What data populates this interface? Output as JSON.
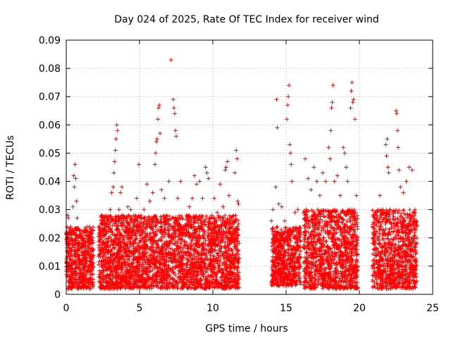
{
  "chart_data": {
    "type": "scatter",
    "title": "Day 024 of 2025, Rate Of TEC Index for receiver wind",
    "xlabel": "GPS time / hours",
    "ylabel": "ROTI / TECUs",
    "xlim": [
      0,
      25
    ],
    "ylim": [
      0,
      0.09
    ],
    "xticks": [
      0,
      5,
      10,
      15,
      20,
      25
    ],
    "yticks": [
      0,
      0.01,
      0.02,
      0.03,
      0.04,
      0.05,
      0.06,
      0.07,
      0.08,
      0.09
    ],
    "xtick_labels": [
      "0",
      "5",
      "10",
      "15",
      "20",
      "25"
    ],
    "ytick_labels": [
      "0",
      "0.01",
      "0.02",
      "0.03",
      "0.04",
      "0.05",
      "0.06",
      "0.07",
      "0.08",
      "0.09"
    ],
    "grid": true,
    "marker": "+",
    "color": "#ff0000",
    "series": [
      {
        "points": [
          [
            0.1,
            0.028
          ],
          [
            0.15,
            0.027
          ],
          [
            0.2,
            0.022
          ],
          [
            0.3,
            0.018
          ],
          [
            0.35,
            0.012
          ],
          [
            0.4,
            0.009
          ],
          [
            0.45,
            0.031
          ],
          [
            0.5,
            0.042
          ],
          [
            0.55,
            0.038
          ],
          [
            0.6,
            0.046
          ],
          [
            0.65,
            0.041
          ],
          [
            0.7,
            0.033
          ],
          [
            0.75,
            0.027
          ],
          [
            0.85,
            0.017
          ],
          [
            0.95,
            0.012
          ],
          [
            1.05,
            0.02
          ],
          [
            1.15,
            0.009
          ],
          [
            1.3,
            0.015
          ],
          [
            1.45,
            0.022
          ],
          [
            1.6,
            0.013
          ],
          [
            1.75,
            0.018
          ],
          [
            1.85,
            0.011
          ],
          [
            2.3,
            0.014
          ],
          [
            2.45,
            0.02
          ],
          [
            2.6,
            0.027
          ],
          [
            2.75,
            0.018
          ],
          [
            2.9,
            0.024
          ],
          [
            3.0,
            0.03
          ],
          [
            3.1,
            0.036
          ],
          [
            3.2,
            0.038
          ],
          [
            3.25,
            0.043
          ],
          [
            3.3,
            0.047
          ],
          [
            3.35,
            0.051
          ],
          [
            3.4,
            0.055
          ],
          [
            3.45,
            0.06
          ],
          [
            3.5,
            0.058
          ],
          [
            3.6,
            0.03
          ],
          [
            3.7,
            0.036
          ],
          [
            3.8,
            0.038
          ],
          [
            3.9,
            0.028
          ],
          [
            4.0,
            0.022
          ],
          [
            4.2,
            0.031
          ],
          [
            4.4,
            0.03
          ],
          [
            4.6,
            0.024
          ],
          [
            4.8,
            0.034
          ],
          [
            4.95,
            0.046
          ],
          [
            5.1,
            0.028
          ],
          [
            5.3,
            0.03
          ],
          [
            5.5,
            0.039
          ],
          [
            5.7,
            0.033
          ],
          [
            5.9,
            0.036
          ],
          [
            6.05,
            0.046
          ],
          [
            6.1,
            0.05
          ],
          [
            6.15,
            0.054
          ],
          [
            6.2,
            0.055
          ],
          [
            6.25,
            0.062
          ],
          [
            6.3,
            0.066
          ],
          [
            6.35,
            0.067
          ],
          [
            6.4,
            0.057
          ],
          [
            6.5,
            0.037
          ],
          [
            6.7,
            0.034
          ],
          [
            6.9,
            0.026
          ],
          [
            7.0,
            0.04
          ],
          [
            7.15,
            0.083
          ],
          [
            7.3,
            0.069
          ],
          [
            7.35,
            0.066
          ],
          [
            7.4,
            0.064
          ],
          [
            7.45,
            0.058
          ],
          [
            7.5,
            0.056
          ],
          [
            7.6,
            0.034
          ],
          [
            7.8,
            0.04
          ],
          [
            8.0,
            0.024
          ],
          [
            8.2,
            0.028
          ],
          [
            8.4,
            0.031
          ],
          [
            8.6,
            0.034
          ],
          [
            8.75,
            0.042
          ],
          [
            8.9,
            0.039
          ],
          [
            9.1,
            0.04
          ],
          [
            9.3,
            0.034
          ],
          [
            9.5,
            0.045
          ],
          [
            9.6,
            0.043
          ],
          [
            9.7,
            0.041
          ],
          [
            9.9,
            0.025
          ],
          [
            10.1,
            0.034
          ],
          [
            10.3,
            0.029
          ],
          [
            10.5,
            0.039
          ],
          [
            10.7,
            0.031
          ],
          [
            10.85,
            0.044
          ],
          [
            10.9,
            0.045
          ],
          [
            11.0,
            0.047
          ],
          [
            11.1,
            0.035
          ],
          [
            11.3,
            0.02
          ],
          [
            11.5,
            0.043
          ],
          [
            11.6,
            0.051
          ],
          [
            11.65,
            0.048
          ],
          [
            11.7,
            0.033
          ],
          [
            11.75,
            0.032
          ],
          [
            14.0,
            0.026
          ],
          [
            14.1,
            0.03
          ],
          [
            14.3,
            0.038
          ],
          [
            14.35,
            0.069
          ],
          [
            14.4,
            0.059
          ],
          [
            14.5,
            0.032
          ],
          [
            14.7,
            0.031
          ],
          [
            14.9,
            0.026
          ],
          [
            15.05,
            0.062
          ],
          [
            15.1,
            0.067
          ],
          [
            15.15,
            0.07
          ],
          [
            15.2,
            0.074
          ],
          [
            15.25,
            0.053
          ],
          [
            15.3,
            0.05
          ],
          [
            15.35,
            0.046
          ],
          [
            15.4,
            0.04
          ],
          [
            15.6,
            0.029
          ],
          [
            15.8,
            0.03
          ],
          [
            16.0,
            0.022
          ],
          [
            16.3,
            0.048
          ],
          [
            16.5,
            0.041
          ],
          [
            16.7,
            0.037
          ],
          [
            16.9,
            0.045
          ],
          [
            17.1,
            0.04
          ],
          [
            17.3,
            0.035
          ],
          [
            17.5,
            0.043
          ],
          [
            17.7,
            0.04
          ],
          [
            17.9,
            0.052
          ],
          [
            18.0,
            0.048
          ],
          [
            18.05,
            0.058
          ],
          [
            18.1,
            0.066
          ],
          [
            18.15,
            0.068
          ],
          [
            18.2,
            0.074
          ],
          [
            18.3,
            0.04
          ],
          [
            18.5,
            0.042
          ],
          [
            18.7,
            0.035
          ],
          [
            18.9,
            0.052
          ],
          [
            19.0,
            0.05
          ],
          [
            19.1,
            0.045
          ],
          [
            19.2,
            0.04
          ],
          [
            19.4,
            0.066
          ],
          [
            19.45,
            0.072
          ],
          [
            19.5,
            0.075
          ],
          [
            19.55,
            0.068
          ],
          [
            19.6,
            0.069
          ],
          [
            19.7,
            0.062
          ],
          [
            19.8,
            0.035
          ],
          [
            21.0,
            0.019
          ],
          [
            21.2,
            0.026
          ],
          [
            21.4,
            0.035
          ],
          [
            21.6,
            0.03
          ],
          [
            21.8,
            0.053
          ],
          [
            21.85,
            0.049
          ],
          [
            21.9,
            0.055
          ],
          [
            21.95,
            0.045
          ],
          [
            22.0,
            0.043
          ],
          [
            22.1,
            0.03
          ],
          [
            22.3,
            0.022
          ],
          [
            22.5,
            0.065
          ],
          [
            22.55,
            0.064
          ],
          [
            22.6,
            0.058
          ],
          [
            22.65,
            0.052
          ],
          [
            22.7,
            0.044
          ],
          [
            22.8,
            0.038
          ],
          [
            23.0,
            0.036
          ],
          [
            23.2,
            0.04
          ],
          [
            23.4,
            0.045
          ],
          [
            23.6,
            0.044
          ],
          [
            23.8,
            0.03
          ],
          [
            23.9,
            0.024
          ]
        ]
      }
    ],
    "data_windows": [
      [
        0.0,
        1.85,
        0.002,
        0.024
      ],
      [
        2.2,
        11.8,
        0.002,
        0.028
      ],
      [
        14.0,
        16.0,
        0.003,
        0.024
      ],
      [
        16.2,
        19.9,
        0.002,
        0.03
      ],
      [
        20.9,
        23.95,
        0.002,
        0.03
      ]
    ]
  }
}
